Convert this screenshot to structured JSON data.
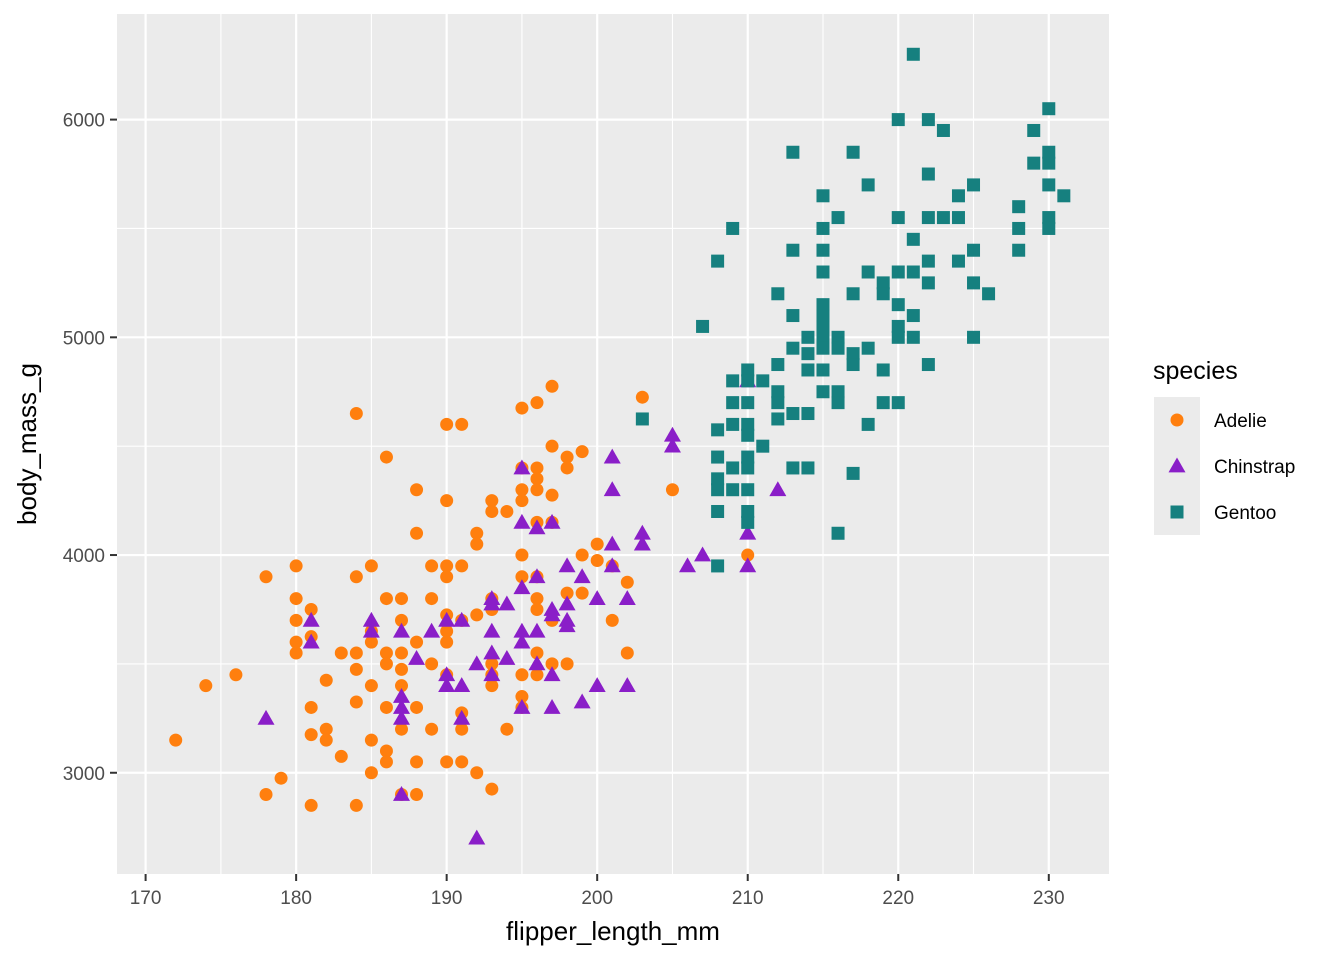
{
  "chart_data": {
    "type": "scatter",
    "xlabel": "flipper_length_mm",
    "ylabel": "body_mass_g",
    "xlim": [
      168.1,
      234
    ],
    "ylim": [
      2535,
      6485
    ],
    "x_ticks": [
      170,
      180,
      190,
      200,
      210,
      220,
      230
    ],
    "y_ticks": [
      3000,
      4000,
      5000,
      6000
    ],
    "grid": true,
    "legend": {
      "title": "species",
      "placement": "right",
      "entries": [
        {
          "label": "Adelie",
          "color": "#FF7F0E",
          "shape": "circle"
        },
        {
          "label": "Chinstrap",
          "color": "#8A1EC8",
          "shape": "triangle"
        },
        {
          "label": "Gentoo",
          "color": "#16807F",
          "shape": "square"
        }
      ]
    },
    "series": [
      {
        "name": "Adelie",
        "color": "#FF7F0E",
        "shape": "circle",
        "points": [
          [
            172,
            3150
          ],
          [
            174,
            3400
          ],
          [
            176,
            3450
          ],
          [
            178,
            3900
          ],
          [
            178,
            2900
          ],
          [
            179,
            2975
          ],
          [
            180,
            3950
          ],
          [
            180,
            3800
          ],
          [
            180,
            3700
          ],
          [
            180,
            3600
          ],
          [
            180,
            3550
          ],
          [
            181,
            3750
          ],
          [
            181,
            3625
          ],
          [
            181,
            3300
          ],
          [
            181,
            3175
          ],
          [
            181,
            2850
          ],
          [
            182,
            3425
          ],
          [
            182,
            3200
          ],
          [
            182,
            3150
          ],
          [
            183,
            3550
          ],
          [
            183,
            3075
          ],
          [
            184,
            4650
          ],
          [
            184,
            3900
          ],
          [
            184,
            3550
          ],
          [
            184,
            3475
          ],
          [
            184,
            3325
          ],
          [
            184,
            2850
          ],
          [
            185,
            3950
          ],
          [
            185,
            3650
          ],
          [
            185,
            3600
          ],
          [
            185,
            3400
          ],
          [
            185,
            3150
          ],
          [
            185,
            3000
          ],
          [
            186,
            4450
          ],
          [
            186,
            3800
          ],
          [
            186,
            3550
          ],
          [
            186,
            3500
          ],
          [
            186,
            3300
          ],
          [
            186,
            3100
          ],
          [
            186,
            3050
          ],
          [
            187,
            3800
          ],
          [
            187,
            3700
          ],
          [
            187,
            3550
          ],
          [
            187,
            3475
          ],
          [
            187,
            3400
          ],
          [
            187,
            3200
          ],
          [
            187,
            2900
          ],
          [
            188,
            4300
          ],
          [
            188,
            4100
          ],
          [
            188,
            3600
          ],
          [
            188,
            3300
          ],
          [
            188,
            3050
          ],
          [
            188,
            2900
          ],
          [
            189,
            3950
          ],
          [
            189,
            3800
          ],
          [
            189,
            3500
          ],
          [
            189,
            3200
          ],
          [
            190,
            4600
          ],
          [
            190,
            4250
          ],
          [
            190,
            3950
          ],
          [
            190,
            3900
          ],
          [
            190,
            3725
          ],
          [
            190,
            3650
          ],
          [
            190,
            3600
          ],
          [
            190,
            3450
          ],
          [
            190,
            3050
          ],
          [
            191,
            4600
          ],
          [
            191,
            3950
          ],
          [
            191,
            3700
          ],
          [
            191,
            3275
          ],
          [
            191,
            3200
          ],
          [
            191,
            3050
          ],
          [
            192,
            4100
          ],
          [
            192,
            4050
          ],
          [
            192,
            3725
          ],
          [
            192,
            3000
          ],
          [
            193,
            4250
          ],
          [
            193,
            4200
          ],
          [
            193,
            3800
          ],
          [
            193,
            3750
          ],
          [
            193,
            3500
          ],
          [
            193,
            3450
          ],
          [
            193,
            3400
          ],
          [
            193,
            2925
          ],
          [
            194,
            4200
          ],
          [
            194,
            3200
          ],
          [
            195,
            4675
          ],
          [
            195,
            4400
          ],
          [
            195,
            4300
          ],
          [
            195,
            4250
          ],
          [
            195,
            4000
          ],
          [
            195,
            3900
          ],
          [
            195,
            3450
          ],
          [
            195,
            3350
          ],
          [
            195,
            3300
          ],
          [
            196,
            4700
          ],
          [
            196,
            4400
          ],
          [
            196,
            4350
          ],
          [
            196,
            4300
          ],
          [
            196,
            4150
          ],
          [
            196,
            3900
          ],
          [
            196,
            3800
          ],
          [
            196,
            3750
          ],
          [
            196,
            3550
          ],
          [
            196,
            3450
          ],
          [
            197,
            4775
          ],
          [
            197,
            4500
          ],
          [
            197,
            4275
          ],
          [
            197,
            4150
          ],
          [
            197,
            3700
          ],
          [
            197,
            3500
          ],
          [
            198,
            4450
          ],
          [
            198,
            4400
          ],
          [
            198,
            3825
          ],
          [
            198,
            3500
          ],
          [
            199,
            4475
          ],
          [
            199,
            4000
          ],
          [
            199,
            3825
          ],
          [
            200,
            3975
          ],
          [
            200,
            4050
          ],
          [
            201,
            3950
          ],
          [
            201,
            3700
          ],
          [
            202,
            3875
          ],
          [
            202,
            3550
          ],
          [
            203,
            4725
          ],
          [
            205,
            4300
          ],
          [
            210,
            4000
          ]
        ]
      },
      {
        "name": "Chinstrap",
        "color": "#8A1EC8",
        "shape": "triangle",
        "points": [
          [
            178,
            3250
          ],
          [
            181,
            3700
          ],
          [
            181,
            3600
          ],
          [
            185,
            3700
          ],
          [
            185,
            3650
          ],
          [
            187,
            3650
          ],
          [
            187,
            3350
          ],
          [
            187,
            3300
          ],
          [
            187,
            3250
          ],
          [
            187,
            2900
          ],
          [
            188,
            3525
          ],
          [
            189,
            3650
          ],
          [
            190,
            3700
          ],
          [
            190,
            3450
          ],
          [
            190,
            3400
          ],
          [
            191,
            3700
          ],
          [
            191,
            3400
          ],
          [
            191,
            3250
          ],
          [
            192,
            3500
          ],
          [
            192,
            2700
          ],
          [
            193,
            3800
          ],
          [
            193,
            3775
          ],
          [
            193,
            3650
          ],
          [
            193,
            3550
          ],
          [
            193,
            3450
          ],
          [
            194,
            3775
          ],
          [
            194,
            3525
          ],
          [
            195,
            4400
          ],
          [
            195,
            4150
          ],
          [
            195,
            3850
          ],
          [
            195,
            3650
          ],
          [
            195,
            3600
          ],
          [
            195,
            3300
          ],
          [
            196,
            4125
          ],
          [
            196,
            3900
          ],
          [
            196,
            3650
          ],
          [
            196,
            3500
          ],
          [
            197,
            4150
          ],
          [
            197,
            3750
          ],
          [
            197,
            3725
          ],
          [
            197,
            3450
          ],
          [
            197,
            3300
          ],
          [
            198,
            3950
          ],
          [
            198,
            3775
          ],
          [
            198,
            3700
          ],
          [
            198,
            3675
          ],
          [
            199,
            3900
          ],
          [
            199,
            3325
          ],
          [
            200,
            3800
          ],
          [
            200,
            3400
          ],
          [
            201,
            4450
          ],
          [
            201,
            4300
          ],
          [
            201,
            4050
          ],
          [
            201,
            3950
          ],
          [
            202,
            3800
          ],
          [
            202,
            3400
          ],
          [
            203,
            4100
          ],
          [
            203,
            4050
          ],
          [
            205,
            4550
          ],
          [
            205,
            4500
          ],
          [
            206,
            3950
          ],
          [
            207,
            4000
          ],
          [
            210,
            4800
          ],
          [
            210,
            4100
          ],
          [
            210,
            3950
          ],
          [
            212,
            4300
          ]
        ]
      },
      {
        "name": "Gentoo",
        "color": "#16807F",
        "shape": "square",
        "points": [
          [
            203,
            4625
          ],
          [
            207,
            5050
          ],
          [
            208,
            5350
          ],
          [
            208,
            4575
          ],
          [
            208,
            4450
          ],
          [
            208,
            4350
          ],
          [
            208,
            4300
          ],
          [
            208,
            4200
          ],
          [
            208,
            3950
          ],
          [
            209,
            5500
          ],
          [
            209,
            4800
          ],
          [
            209,
            4700
          ],
          [
            209,
            4600
          ],
          [
            209,
            4400
          ],
          [
            209,
            4300
          ],
          [
            210,
            4850
          ],
          [
            210,
            4800
          ],
          [
            210,
            4700
          ],
          [
            210,
            4600
          ],
          [
            210,
            4550
          ],
          [
            210,
            4450
          ],
          [
            210,
            4400
          ],
          [
            210,
            4300
          ],
          [
            210,
            4200
          ],
          [
            210,
            4150
          ],
          [
            211,
            4800
          ],
          [
            211,
            4500
          ],
          [
            212,
            5200
          ],
          [
            212,
            4875
          ],
          [
            212,
            4750
          ],
          [
            212,
            4700
          ],
          [
            212,
            4625
          ],
          [
            213,
            5850
          ],
          [
            213,
            5400
          ],
          [
            213,
            5100
          ],
          [
            213,
            4950
          ],
          [
            213,
            4650
          ],
          [
            213,
            4400
          ],
          [
            214,
            5000
          ],
          [
            214,
            4925
          ],
          [
            214,
            4850
          ],
          [
            214,
            4650
          ],
          [
            214,
            4400
          ],
          [
            215,
            5650
          ],
          [
            215,
            5500
          ],
          [
            215,
            5400
          ],
          [
            215,
            5300
          ],
          [
            215,
            5150
          ],
          [
            215,
            5100
          ],
          [
            215,
            5050
          ],
          [
            215,
            5000
          ],
          [
            215,
            4950
          ],
          [
            215,
            4850
          ],
          [
            215,
            4750
          ],
          [
            216,
            5550
          ],
          [
            216,
            5000
          ],
          [
            216,
            4950
          ],
          [
            216,
            4750
          ],
          [
            216,
            4700
          ],
          [
            216,
            4100
          ],
          [
            217,
            5850
          ],
          [
            217,
            5200
          ],
          [
            217,
            4925
          ],
          [
            217,
            4875
          ],
          [
            217,
            4375
          ],
          [
            218,
            5700
          ],
          [
            218,
            5300
          ],
          [
            218,
            4950
          ],
          [
            218,
            4600
          ],
          [
            219,
            5250
          ],
          [
            219,
            5200
          ],
          [
            219,
            4850
          ],
          [
            219,
            4700
          ],
          [
            220,
            6000
          ],
          [
            220,
            5550
          ],
          [
            220,
            5300
          ],
          [
            220,
            5150
          ],
          [
            220,
            5050
          ],
          [
            220,
            5000
          ],
          [
            220,
            4700
          ],
          [
            221,
            6300
          ],
          [
            221,
            5450
          ],
          [
            221,
            5300
          ],
          [
            221,
            5100
          ],
          [
            221,
            5000
          ],
          [
            222,
            6000
          ],
          [
            222,
            5750
          ],
          [
            222,
            5550
          ],
          [
            222,
            5350
          ],
          [
            222,
            5250
          ],
          [
            222,
            4875
          ],
          [
            223,
            5950
          ],
          [
            223,
            5550
          ],
          [
            224,
            5650
          ],
          [
            224,
            5550
          ],
          [
            224,
            5350
          ],
          [
            225,
            5700
          ],
          [
            225,
            5400
          ],
          [
            225,
            5250
          ],
          [
            225,
            5000
          ],
          [
            226,
            5200
          ],
          [
            228,
            5600
          ],
          [
            228,
            5500
          ],
          [
            228,
            5400
          ],
          [
            229,
            5950
          ],
          [
            229,
            5800
          ],
          [
            230,
            6050
          ],
          [
            230,
            5850
          ],
          [
            230,
            5800
          ],
          [
            230,
            5700
          ],
          [
            230,
            5550
          ],
          [
            230,
            5500
          ],
          [
            231,
            5650
          ]
        ]
      }
    ]
  }
}
